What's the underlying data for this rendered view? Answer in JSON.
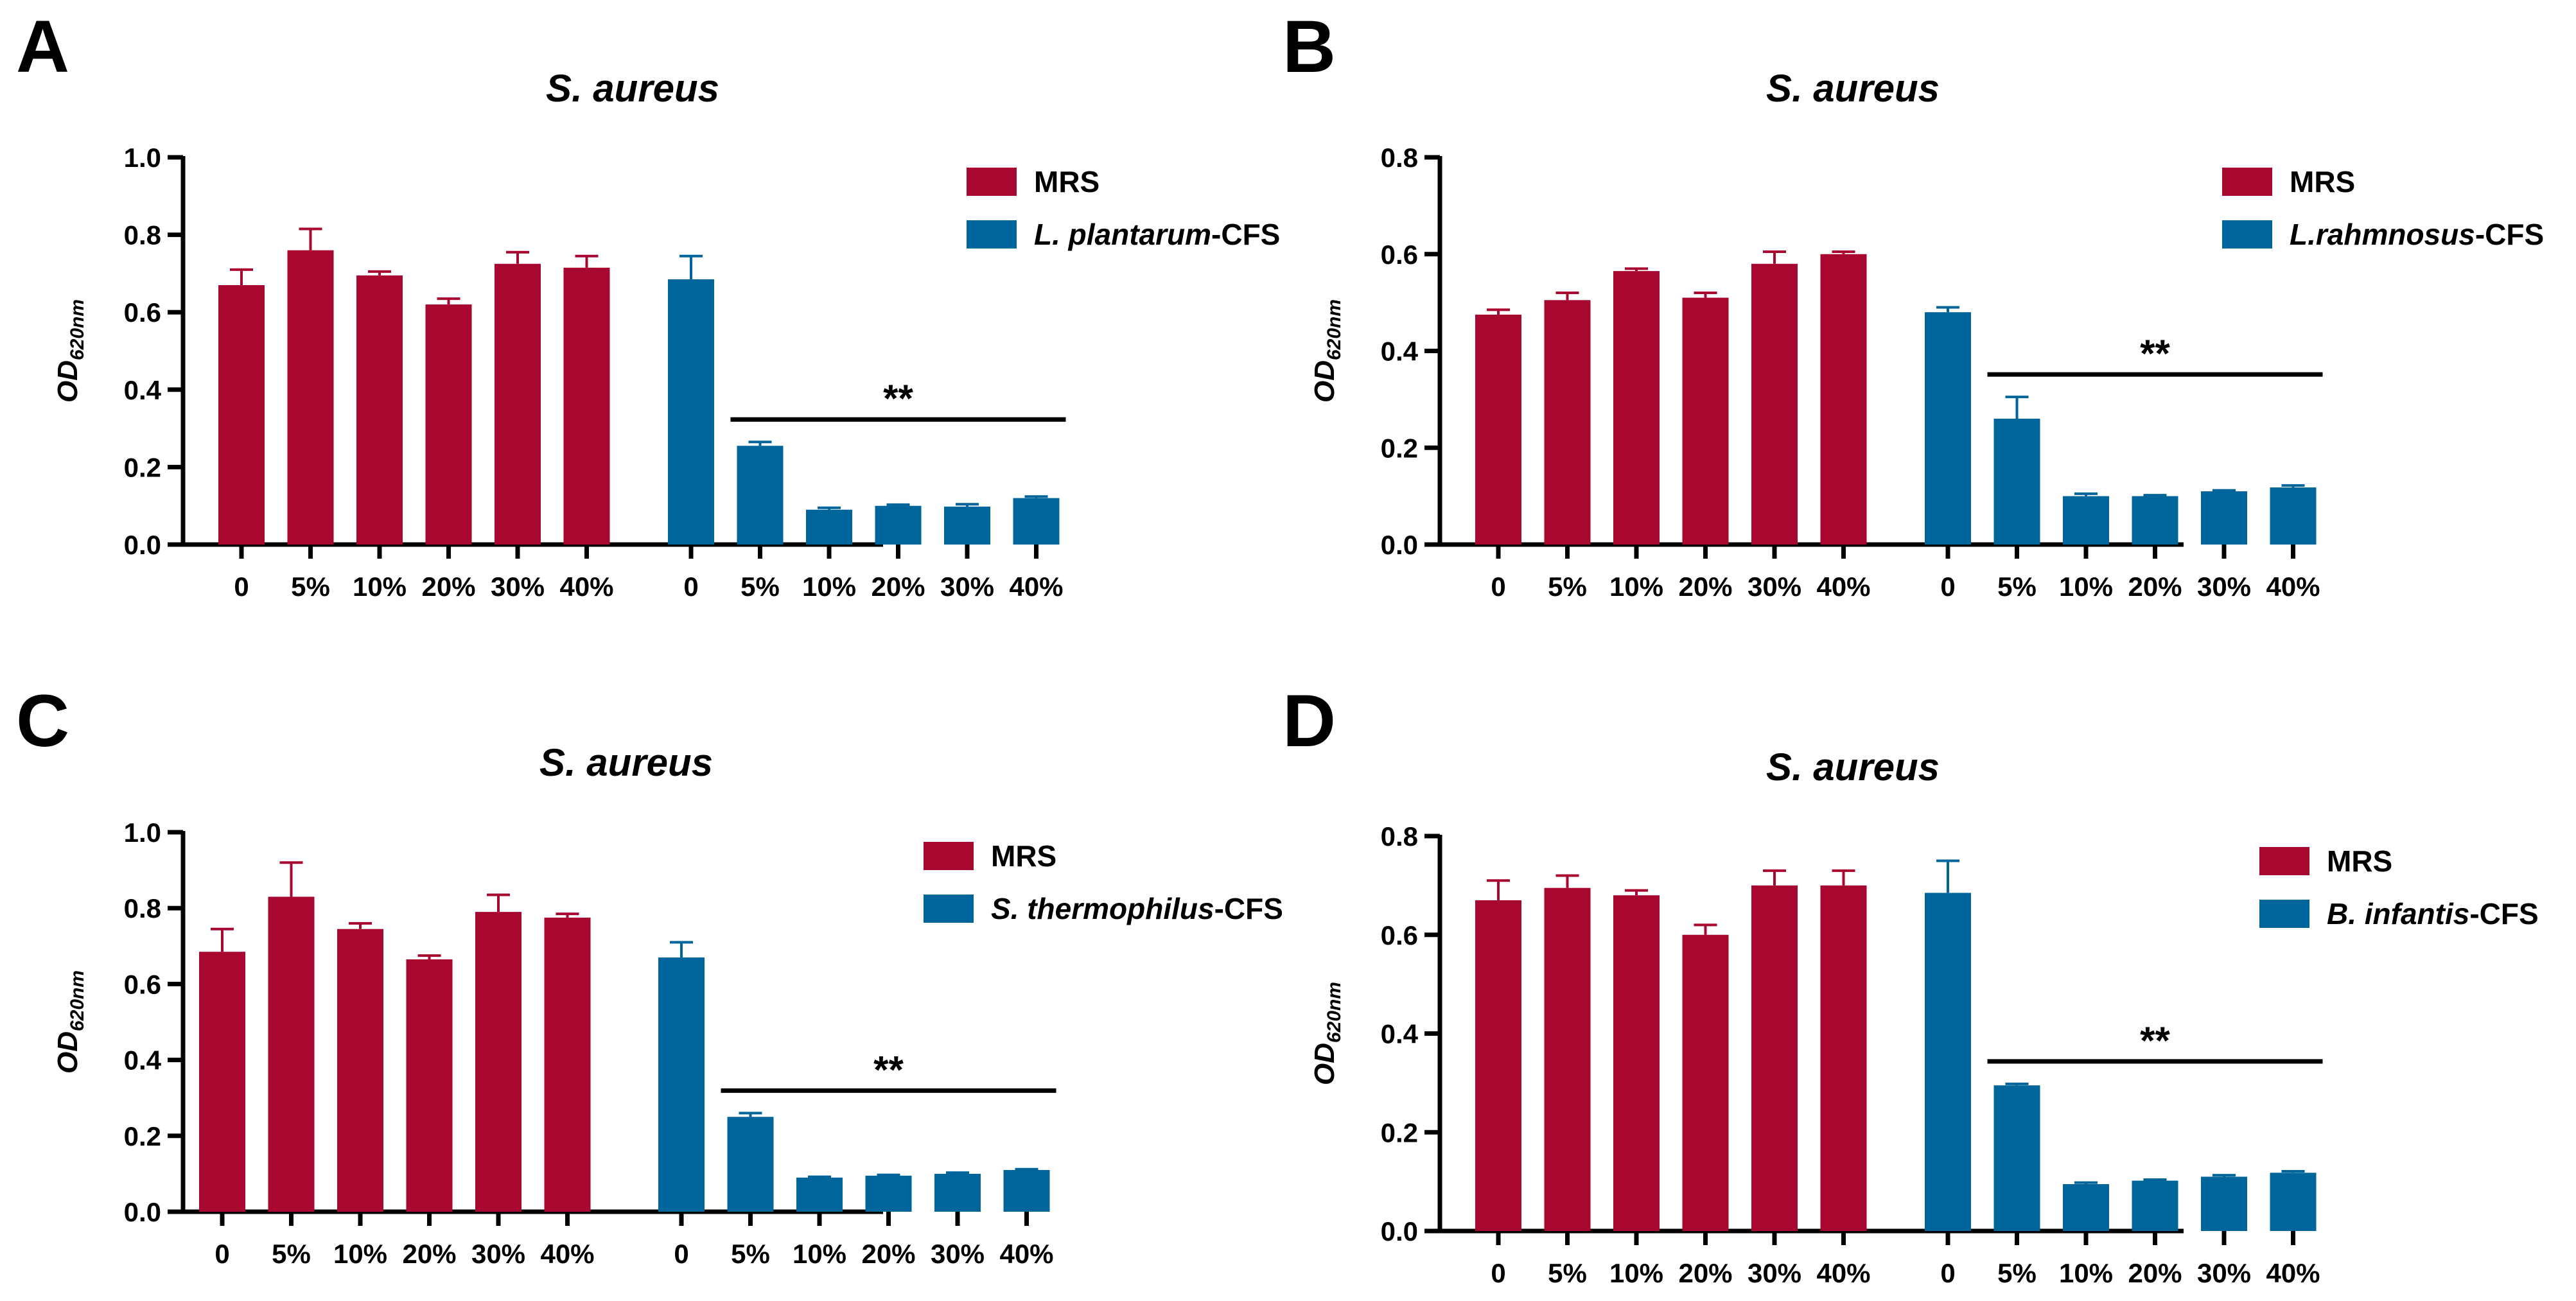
{
  "colors": {
    "mrs": "#a8072f",
    "cfs": "#00659a",
    "axis": "#000000"
  },
  "chart_data": [
    {
      "panel_label": "A",
      "type": "bar",
      "title": "S. aureus",
      "ylabel_main": "OD",
      "ylabel_sub": "620nm",
      "ylim": [
        0,
        1.0
      ],
      "yticks": [
        "0.0",
        "0.2",
        "0.4",
        "0.6",
        "0.8",
        "1.0"
      ],
      "ytick_values": [
        0,
        0.2,
        0.4,
        0.6,
        0.8,
        1.0
      ],
      "categories": [
        "0",
        "5%",
        "10%",
        "20%",
        "30%",
        "40%"
      ],
      "series": [
        {
          "name": "MRS",
          "name_italic": "",
          "name_suffix": "",
          "values": [
            0.67,
            0.76,
            0.695,
            0.62,
            0.725,
            0.715
          ],
          "errors": [
            0.04,
            0.055,
            0.01,
            0.015,
            0.03,
            0.03
          ]
        },
        {
          "name": "",
          "name_italic": "L. plantarum",
          "name_suffix": "-CFS",
          "values": [
            0.685,
            0.255,
            0.09,
            0.1,
            0.098,
            0.12
          ],
          "errors": [
            0.06,
            0.01,
            0.005,
            0.003,
            0.006,
            0.004
          ]
        }
      ],
      "significance": "**",
      "legend": "top-right"
    },
    {
      "panel_label": "B",
      "type": "bar",
      "title": "S. aureus",
      "ylabel_main": "OD",
      "ylabel_sub": "620nm",
      "ylim": [
        0,
        0.8
      ],
      "yticks": [
        "0.0",
        "0.2",
        "0.4",
        "0.6",
        "0.8"
      ],
      "ytick_values": [
        0,
        0.2,
        0.4,
        0.6,
        0.8
      ],
      "categories": [
        "0",
        "5%",
        "10%",
        "20%",
        "30%",
        "40%"
      ],
      "series": [
        {
          "name": "MRS",
          "name_italic": "",
          "name_suffix": "",
          "values": [
            0.475,
            0.505,
            0.565,
            0.51,
            0.58,
            0.6
          ],
          "errors": [
            0.01,
            0.015,
            0.005,
            0.01,
            0.025,
            0.005
          ]
        },
        {
          "name": "",
          "name_italic": "L.rahmnosus",
          "name_suffix": "-CFS",
          "values": [
            0.48,
            0.26,
            0.1,
            0.1,
            0.11,
            0.118
          ],
          "errors": [
            0.01,
            0.045,
            0.005,
            0.002,
            0.002,
            0.004
          ]
        }
      ],
      "significance": "**",
      "legend": "top-right"
    },
    {
      "panel_label": "C",
      "type": "bar",
      "title": "S. aureus",
      "ylabel_main": "OD",
      "ylabel_sub": "620nm",
      "ylim": [
        0,
        1.0
      ],
      "yticks": [
        "0.0",
        "0.2",
        "0.4",
        "0.6",
        "0.8",
        "1.0"
      ],
      "ytick_values": [
        0,
        0.2,
        0.4,
        0.6,
        0.8,
        1.0
      ],
      "categories": [
        "0",
        "5%",
        "10%",
        "20%",
        "30%",
        "40%"
      ],
      "series": [
        {
          "name": "MRS",
          "name_italic": "",
          "name_suffix": "",
          "values": [
            0.685,
            0.83,
            0.745,
            0.665,
            0.79,
            0.775
          ],
          "errors": [
            0.06,
            0.09,
            0.015,
            0.01,
            0.045,
            0.01
          ]
        },
        {
          "name": "",
          "name_italic": "S. thermophilus",
          "name_suffix": "-CFS",
          "values": [
            0.67,
            0.25,
            0.09,
            0.095,
            0.1,
            0.11
          ],
          "errors": [
            0.04,
            0.01,
            0.002,
            0.002,
            0.003,
            0.002
          ]
        }
      ],
      "significance": "**",
      "legend": "top-right"
    },
    {
      "panel_label": "D",
      "type": "bar",
      "title": "S. aureus",
      "ylabel_main": "OD",
      "ylabel_sub": "620nm",
      "ylim": [
        0,
        0.8
      ],
      "yticks": [
        "0.0",
        "0.2",
        "0.4",
        "0.6",
        "0.8"
      ],
      "ytick_values": [
        0,
        0.2,
        0.4,
        0.6,
        0.8
      ],
      "categories": [
        "0",
        "5%",
        "10%",
        "20%",
        "30%",
        "40%"
      ],
      "series": [
        {
          "name": "MRS",
          "name_italic": "",
          "name_suffix": "",
          "values": [
            0.67,
            0.695,
            0.68,
            0.6,
            0.7,
            0.7
          ],
          "errors": [
            0.04,
            0.025,
            0.01,
            0.02,
            0.03,
            0.03
          ]
        },
        {
          "name": "",
          "name_italic": "B. infantis",
          "name_suffix": "-CFS",
          "values": [
            0.685,
            0.295,
            0.095,
            0.102,
            0.11,
            0.118
          ],
          "errors": [
            0.065,
            0.003,
            0.003,
            0.002,
            0.003,
            0.003
          ]
        }
      ],
      "significance": "**",
      "legend": "top-right"
    }
  ]
}
